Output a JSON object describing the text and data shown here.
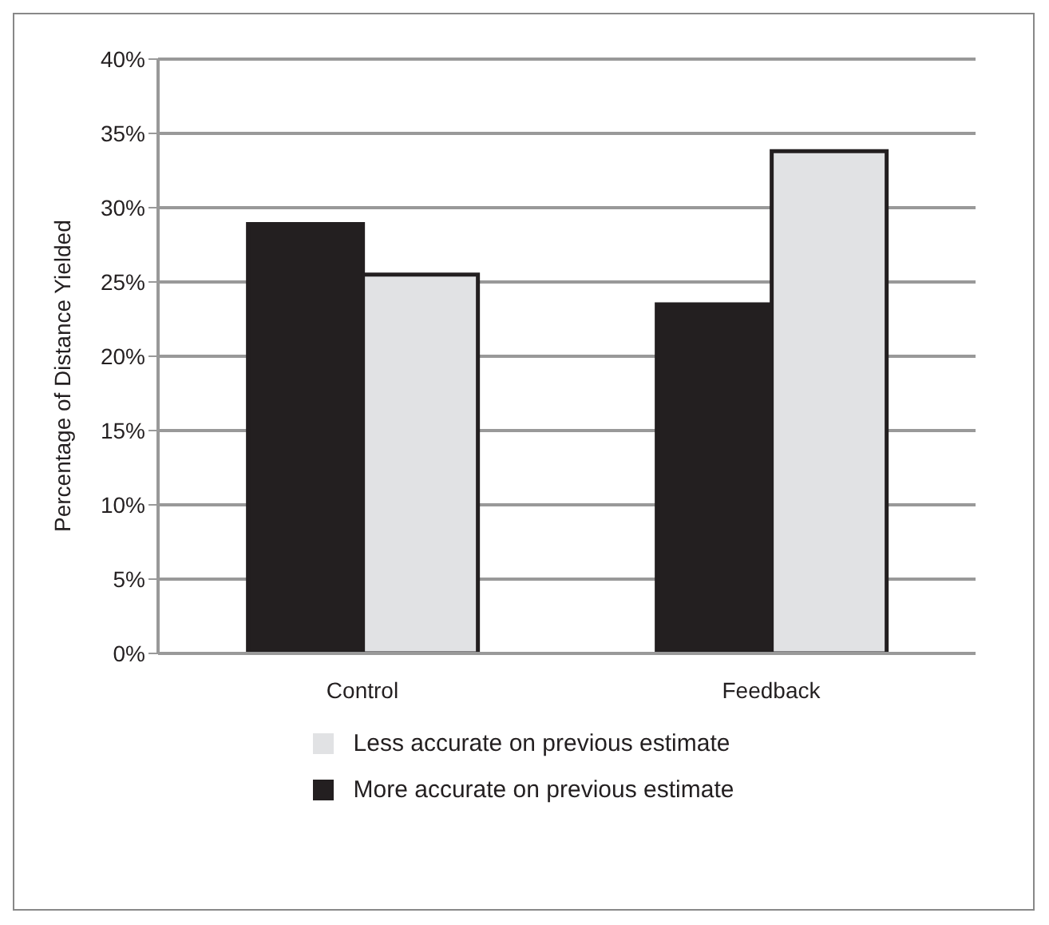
{
  "chart_data": {
    "type": "bar",
    "ylabel": "Percentage of Distance Yielded",
    "categories": [
      "Control",
      "Feedback"
    ],
    "series": [
      {
        "name": "More accurate on previous estimate",
        "color": "#231f20",
        "values": [
          28.9,
          23.5
        ]
      },
      {
        "name": "Less accurate on previous estimate",
        "color": "#e1e2e4",
        "values": [
          25.5,
          33.8
        ]
      }
    ],
    "ylim": [
      0,
      40
    ],
    "yticks": [
      {
        "value": 0,
        "label": "0%"
      },
      {
        "value": 5,
        "label": "5%"
      },
      {
        "value": 10,
        "label": "10%"
      },
      {
        "value": 15,
        "label": "15%"
      },
      {
        "value": 20,
        "label": "20%"
      },
      {
        "value": 25,
        "label": "25%"
      },
      {
        "value": 30,
        "label": "30%"
      },
      {
        "value": 35,
        "label": "35%"
      },
      {
        "value": 40,
        "label": "40%"
      }
    ],
    "grid": "y",
    "legend": "bottom"
  }
}
